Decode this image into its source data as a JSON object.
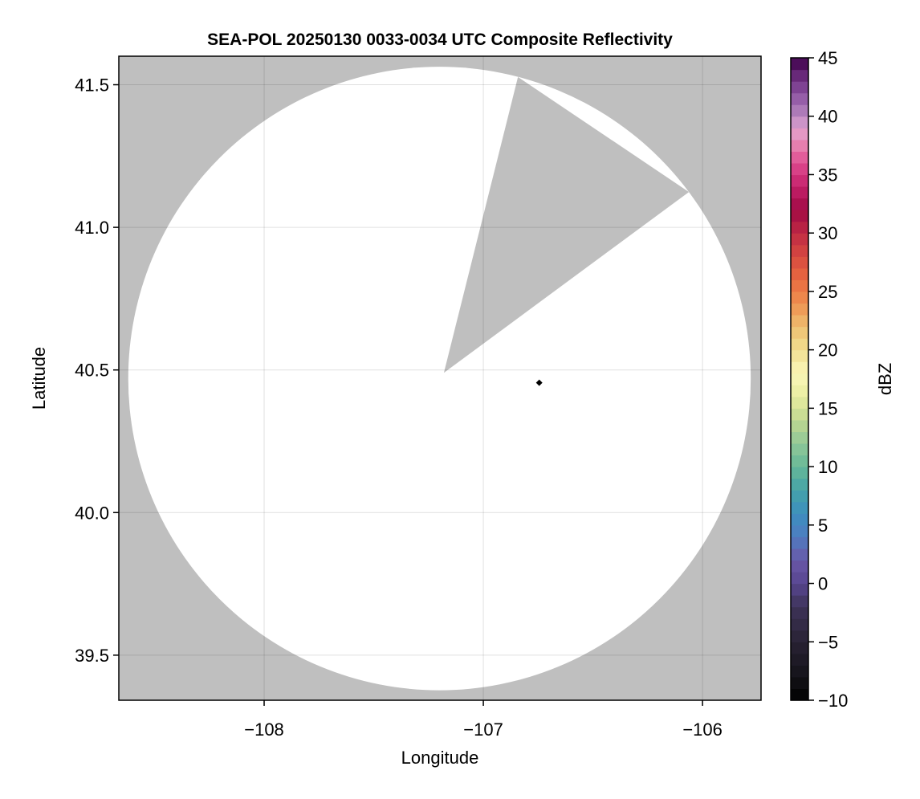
{
  "chart_data": {
    "type": "heatmap",
    "title": "SEA-POL 20250130 0033-0034 UTC Composite Reflectivity",
    "xlabel": "Longitude",
    "ylabel": "Latitude",
    "xlim": [
      -108.663,
      -105.733
    ],
    "ylim": [
      39.342,
      41.6
    ],
    "xticks": [
      -108,
      -107,
      -106
    ],
    "xtick_labels": [
      "−108",
      "−107",
      "−106"
    ],
    "yticks": [
      39.5,
      40.0,
      40.5,
      41.0,
      41.5
    ],
    "ytick_labels": [
      "39.5",
      "40.0",
      "40.5",
      "41.0",
      "41.5"
    ],
    "grid": true,
    "background_color": "#bfbfbf",
    "radar_coverage": {
      "center": {
        "lon": -107.2,
        "lat": 40.47
      },
      "radius_deg": {
        "lon": 1.42,
        "lat": 1.093
      },
      "fill": "#ffffff",
      "blocked_sector": [
        {
          "lon": -107.18,
          "lat": 40.49
        },
        {
          "lon": -106.842,
          "lat": 41.527
        },
        {
          "lon": -106.062,
          "lat": 41.124
        }
      ]
    },
    "marker": {
      "lon": -106.745,
      "lat": 40.455,
      "shape": "diamond",
      "color": "#000000"
    },
    "colorbar": {
      "label": "dBZ",
      "range": [
        -10,
        45
      ],
      "step": 1,
      "ticks": [
        -10,
        -5,
        0,
        5,
        10,
        15,
        20,
        25,
        30,
        35,
        40,
        45
      ],
      "tick_labels": [
        "−10",
        "−5",
        "0",
        "5",
        "10",
        "15",
        "20",
        "25",
        "30",
        "35",
        "40",
        "45"
      ],
      "colormap_stops": [
        [
          -10,
          "#000000"
        ],
        [
          -8,
          "#141218"
        ],
        [
          -5,
          "#282234"
        ],
        [
          -2,
          "#3e3358"
        ],
        [
          0,
          "#574590"
        ],
        [
          2,
          "#6a58a8"
        ],
        [
          4,
          "#4e7cc0"
        ],
        [
          6,
          "#3d8fbf"
        ],
        [
          8,
          "#45a3a8"
        ],
        [
          10,
          "#66b898"
        ],
        [
          12,
          "#90c898"
        ],
        [
          14,
          "#c0d890"
        ],
        [
          16,
          "#e8eca0"
        ],
        [
          18,
          "#fbf7b8"
        ],
        [
          20,
          "#f2df90"
        ],
        [
          22,
          "#eebf70"
        ],
        [
          24,
          "#ee9050"
        ],
        [
          26,
          "#e96a40"
        ],
        [
          28,
          "#d84a40"
        ],
        [
          30,
          "#c02a44"
        ],
        [
          32,
          "#a00a44"
        ],
        [
          34,
          "#c4206a"
        ],
        [
          36,
          "#de4c90"
        ],
        [
          38,
          "#e890b8"
        ],
        [
          39,
          "#e0a0d0"
        ],
        [
          40,
          "#b888c0"
        ],
        [
          42,
          "#8a50a0"
        ],
        [
          44,
          "#5c1c6c"
        ],
        [
          45,
          "#3c0048"
        ]
      ]
    }
  }
}
